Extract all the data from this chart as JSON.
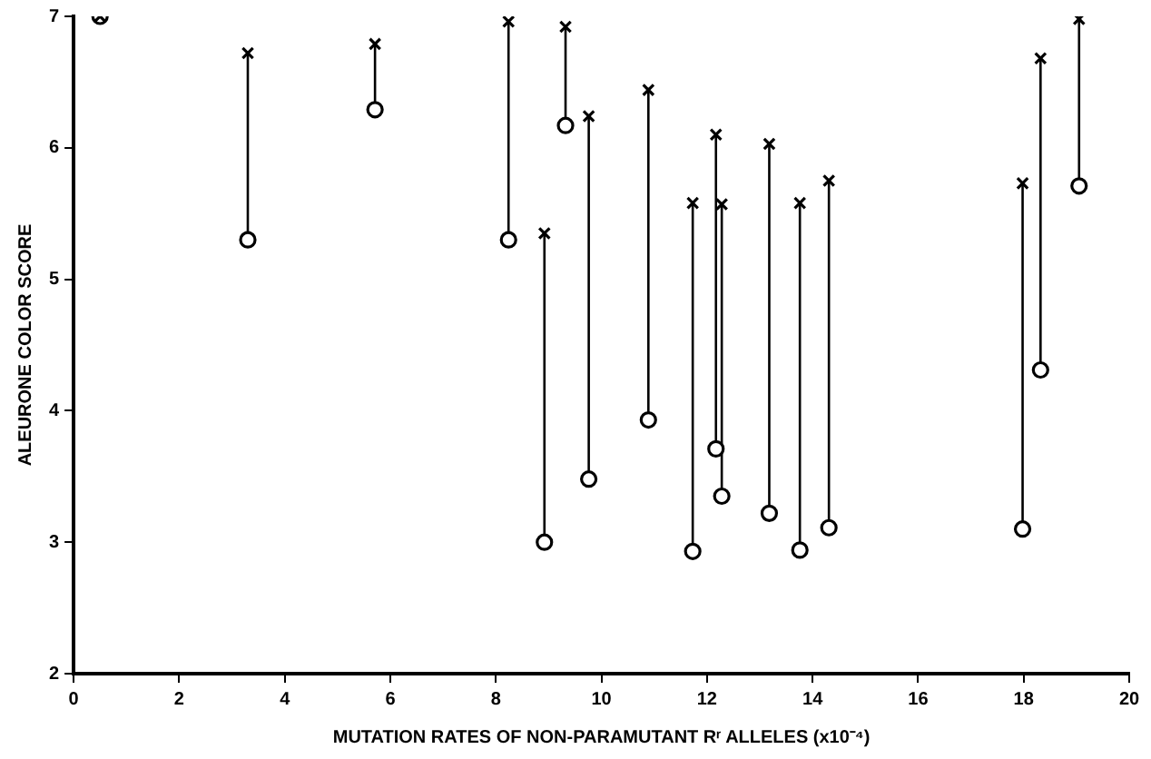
{
  "chart_data": {
    "type": "scatter",
    "xlabel": "MUTATION RATES OF NON-PARAMUTANT Rʳ ALLELES (x10⁻⁴)",
    "ylabel": "ALEURONE COLOR SCORE",
    "x": [
      0.5,
      3.3,
      5.71,
      8.24,
      8.92,
      9.32,
      9.76,
      10.89,
      11.73,
      12.17,
      12.28,
      13.18,
      13.76,
      14.31,
      17.98,
      18.32,
      19.05
    ],
    "series": [
      {
        "color": "#000000",
        "marker": "cross",
        "values": [
          7.0,
          6.72,
          6.79,
          6.96,
          5.35,
          6.92,
          6.24,
          6.44,
          5.58,
          6.1,
          5.57,
          6.03,
          5.58,
          5.75,
          5.73,
          6.68,
          6.98
        ]
      },
      {
        "color": "#000000",
        "marker": "circle",
        "values": [
          7.0,
          5.3,
          6.29,
          5.3,
          3.0,
          6.17,
          3.48,
          3.93,
          2.93,
          3.71,
          3.35,
          3.22,
          2.94,
          3.11,
          3.1,
          4.31,
          5.71
        ],
        "errors": [
          null,
          [
            5.3,
            6.72
          ],
          [
            6.29,
            6.79
          ],
          [
            5.3,
            6.96
          ],
          [
            3.0,
            5.35
          ],
          [
            6.17,
            6.92
          ],
          [
            3.48,
            6.24
          ],
          [
            3.93,
            6.44
          ],
          [
            2.93,
            5.58
          ],
          [
            3.71,
            6.1
          ],
          [
            3.35,
            5.57
          ],
          [
            3.22,
            6.03
          ],
          [
            2.94,
            5.58
          ],
          [
            3.11,
            5.75
          ],
          [
            3.1,
            5.73
          ],
          [
            4.31,
            6.68
          ],
          [
            5.71,
            6.98
          ]
        ]
      }
    ],
    "xlim": [
      0,
      20
    ],
    "xticks": [
      0,
      2,
      4,
      6,
      8,
      10,
      12,
      14,
      16,
      18,
      20
    ],
    "ylim": [
      2,
      7
    ],
    "yticks": [
      2,
      3,
      4,
      5,
      6,
      7
    ],
    "grid": false,
    "legend": false
  }
}
